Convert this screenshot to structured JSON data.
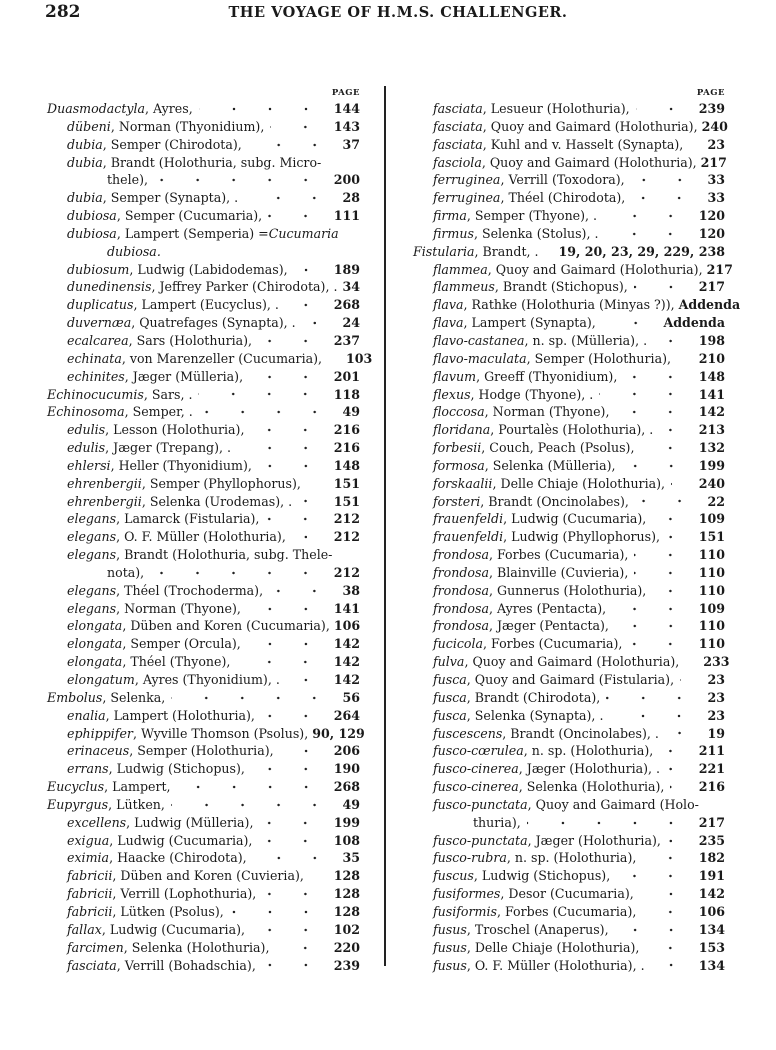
{
  "header": {
    "page_number": "282",
    "running_title": "THE VOYAGE OF H.M.S. CHALLENGER."
  },
  "columns": [
    {
      "page_label": "PAGE",
      "lines": [
        {
          "n": "Duasmodactyla",
          "t": ", Ayres,",
          "p": "144",
          "i": 0,
          "d": true
        },
        {
          "n": "dübeni",
          "t": ", Norman (Thyonidium),",
          "p": "143",
          "i": 1,
          "d": true
        },
        {
          "n": "dubia",
          "t": ", Semper (Chirodota),",
          "p": "37",
          "i": 1,
          "d": true
        },
        {
          "n": "dubia",
          "t": ", Brandt (Holothuria, subg. Micro-",
          "p": "",
          "i": 1,
          "d": false
        },
        {
          "n": "",
          "t": "thele),",
          "p": "200",
          "i": 2,
          "d": true
        },
        {
          "n": "dubia",
          "t": ", Semper (Synapta), .",
          "p": "28",
          "i": 1,
          "d": true
        },
        {
          "n": "dubiosa",
          "t": ", Semper (Cucumaria),",
          "p": "111",
          "i": 1,
          "d": true
        },
        {
          "n": "dubiosa",
          "t": ", Lampert (Semperia) = ",
          "n2": "Cucumaria",
          "p": "",
          "i": 1,
          "d": false
        },
        {
          "n": "dubiosa.",
          "t": "",
          "p": "",
          "i": 2,
          "d": false
        },
        {
          "n": "dubiosum",
          "t": ", Ludwig (Labidodemas),",
          "p": "189",
          "i": 1,
          "d": true
        },
        {
          "n": "dunedinensis",
          "t": ", Jeffrey Parker (Chirodota), .",
          "p": "34",
          "i": 1,
          "d": false
        },
        {
          "n": "duplicatus",
          "t": ", Lampert (Eucyclus), .",
          "p": "268",
          "i": 1,
          "d": true
        },
        {
          "n": "duvernæa",
          "t": ", Quatrefages (Synapta), .",
          "p": "24",
          "i": 1,
          "d": true
        },
        {
          "n": "ecalcarea",
          "t": ", Sars (Holothuria),",
          "p": "237",
          "i": 1,
          "d": true
        },
        {
          "n": "echinata",
          "t": ", von Marenzeller (Cucumaria),",
          "p": "103",
          "i": 1,
          "d": true
        },
        {
          "n": "echinites",
          "t": ", Jæger (Mülleria),",
          "p": "201",
          "i": 1,
          "d": true
        },
        {
          "n": "Echinocucumis",
          "t": ", Sars, .",
          "p": "118",
          "i": 0,
          "d": true
        },
        {
          "n": "Echinosoma",
          "t": ", Semper, .",
          "p": "49",
          "i": 0,
          "d": true
        },
        {
          "n": "edulis",
          "t": ", Lesson (Holothuria),",
          "p": "216",
          "i": 1,
          "d": true
        },
        {
          "n": "edulis",
          "t": ", Jæger (Trepang), .",
          "p": "216",
          "i": 1,
          "d": true
        },
        {
          "n": "ehlersi",
          "t": ", Heller (Thyonidium),",
          "p": "148",
          "i": 1,
          "d": true
        },
        {
          "n": "ehrenbergii",
          "t": ", Semper (Phyllophorus),",
          "p": "151",
          "i": 1,
          "d": true
        },
        {
          "n": "ehrenbergii",
          "t": ", Selenka (Urodemas), .",
          "p": "151",
          "i": 1,
          "d": true
        },
        {
          "n": "elegans",
          "t": ", Lamarck (Fistularia),",
          "p": "212",
          "i": 1,
          "d": true
        },
        {
          "n": "elegans",
          "t": ", O. F. Müller (Holothuria),",
          "p": "212",
          "i": 1,
          "d": true
        },
        {
          "n": "elegans",
          "t": ", Brandt (Holothuria, subg. Thele-",
          "p": "",
          "i": 1,
          "d": false
        },
        {
          "n": "",
          "t": "nota),",
          "p": "212",
          "i": 2,
          "d": true
        },
        {
          "n": "elegans",
          "t": ", Théel (Trochoderma),",
          "p": "38",
          "i": 1,
          "d": true
        },
        {
          "n": "elegans",
          "t": ", Norman (Thyone),",
          "p": "141",
          "i": 1,
          "d": true
        },
        {
          "n": "elongata",
          "t": ", Düben and Koren (Cucumaria),",
          "p": "106",
          "i": 1,
          "d": false
        },
        {
          "n": "elongata",
          "t": ", Semper (Orcula),",
          "p": "142",
          "i": 1,
          "d": true
        },
        {
          "n": "elongata",
          "t": ", Théel (Thyone),",
          "p": "142",
          "i": 1,
          "d": true
        },
        {
          "n": "elongatum",
          "t": ", Ayres (Thyonidium), .",
          "p": "142",
          "i": 1,
          "d": true
        },
        {
          "n": "Embolus",
          "t": ", Selenka,",
          "p": "56",
          "i": 0,
          "d": true
        },
        {
          "n": "enalia",
          "t": ", Lampert (Holothuria),",
          "p": "264",
          "i": 1,
          "d": true
        },
        {
          "n": "ephippifer",
          "t": ", Wyville Thomson (Psolus),",
          "p": "90, 129",
          "i": 1,
          "d": false
        },
        {
          "n": "erinaceus",
          "t": ", Semper (Holothuria),",
          "p": "206",
          "i": 1,
          "d": true
        },
        {
          "n": "errans",
          "t": ", Ludwig (Stichopus),",
          "p": "190",
          "i": 1,
          "d": true
        },
        {
          "n": "Eucyclus",
          "t": ", Lampert,",
          "p": "268",
          "i": 0,
          "d": true
        },
        {
          "n": "Eupyrgus",
          "t": ", Lütken,",
          "p": "49",
          "i": 0,
          "d": true
        },
        {
          "n": "excellens",
          "t": ", Ludwig (Mülleria),",
          "p": "199",
          "i": 1,
          "d": true
        },
        {
          "n": "exigua",
          "t": ", Ludwig (Cucumaria),",
          "p": "108",
          "i": 1,
          "d": true
        },
        {
          "n": "eximia",
          "t": ", Haacke (Chirodota),",
          "p": "35",
          "i": 1,
          "d": true
        },
        {
          "n": "fabricii",
          "t": ", Düben and Koren (Cuvieria),",
          "p": "128",
          "i": 1,
          "d": true
        },
        {
          "n": "fabricii",
          "t": ", Verrill (Lophothuria),",
          "p": "128",
          "i": 1,
          "d": true
        },
        {
          "n": "fabricii",
          "t": ", Lütken (Psolus),",
          "p": "128",
          "i": 1,
          "d": true
        },
        {
          "n": "fallax",
          "t": ", Ludwig (Cucumaria),",
          "p": "102",
          "i": 1,
          "d": true
        },
        {
          "n": "farcimen",
          "t": ", Selenka (Holothuria),",
          "p": "220",
          "i": 1,
          "d": true
        },
        {
          "n": "fasciata",
          "t": ", Verrill (Bohadschia),",
          "p": "239",
          "i": 1,
          "d": true
        }
      ]
    },
    {
      "page_label": "PAGE",
      "lines": [
        {
          "n": "fasciata",
          "t": ", Lesueur (Holothuria),",
          "p": "239",
          "i": 1,
          "d": true
        },
        {
          "n": "fasciata",
          "t": ", Quoy and Gaimard (Holothuria),",
          "p": "240",
          "i": 1,
          "d": false
        },
        {
          "n": "fasciata",
          "t": ", Kuhl and v. Hasselt (Synapta),",
          "p": "23",
          "i": 1,
          "d": false
        },
        {
          "n": "fasciola",
          "t": ", Quoy and Gaimard (Holothuria),",
          "p": "217",
          "i": 1,
          "d": false
        },
        {
          "n": "ferruginea",
          "t": ", Verrill (Toxodora),",
          "p": "33",
          "i": 1,
          "d": true
        },
        {
          "n": "ferruginea",
          "t": ", Théel (Chirodota),",
          "p": "33",
          "i": 1,
          "d": true
        },
        {
          "n": "firma",
          "t": ", Semper (Thyone), .",
          "p": "120",
          "i": 1,
          "d": true
        },
        {
          "n": "firmus",
          "t": ", Selenka (Stolus), .",
          "p": "120",
          "i": 1,
          "d": true
        },
        {
          "n": "Fistularia",
          "t": ", Brandt,   .",
          "p": "19, 20, 23, 29, 229, 238",
          "i": 0,
          "d": false
        },
        {
          "n": "flammea",
          "t": ", Quoy and Gaimard (Holothuria),",
          "p": "217",
          "i": 1,
          "d": false
        },
        {
          "n": "flammeus",
          "t": ", Brandt (Stichopus),",
          "p": "217",
          "i": 1,
          "d": true
        },
        {
          "n": "flava",
          "t": ", Rathke (Holothuria (Minyas ?)),",
          "p": "Addenda",
          "i": 1,
          "d": false
        },
        {
          "n": "flava",
          "t": ", Lampert (Synapta),",
          "p": "Addenda",
          "i": 1,
          "d": true
        },
        {
          "n": "flavo-castanea",
          "t": ", n. sp. (Mülleria), .",
          "p": "198",
          "i": 1,
          "d": true
        },
        {
          "n": "flavo-maculata",
          "t": ", Semper (Holothuria),",
          "p": "210",
          "i": 1,
          "d": true
        },
        {
          "n": "flavum",
          "t": ", Greeff (Thyonidium),",
          "p": "148",
          "i": 1,
          "d": true
        },
        {
          "n": "flexus",
          "t": ", Hodge (Thyone), .",
          "p": "141",
          "i": 1,
          "d": true
        },
        {
          "n": "floccosa",
          "t": ", Norman (Thyone),",
          "p": "142",
          "i": 1,
          "d": true
        },
        {
          "n": "floridana",
          "t": ", Pourtalès (Holothuria), .",
          "p": "213",
          "i": 1,
          "d": true
        },
        {
          "n": "forbesii",
          "t": ", Couch, Peach (Psolus),",
          "p": "132",
          "i": 1,
          "d": true
        },
        {
          "n": "formosa",
          "t": ", Selenka (Mülleria),",
          "p": "199",
          "i": 1,
          "d": true
        },
        {
          "n": "forskaalii",
          "t": ", Delle Chiaje (Holothuria),",
          "p": "240",
          "i": 1,
          "d": true
        },
        {
          "n": "forsteri",
          "t": ", Brandt (Oncinolabes),",
          "p": "22",
          "i": 1,
          "d": true
        },
        {
          "n": "frauenfeldi",
          "t": ", Ludwig (Cucumaria),",
          "p": "109",
          "i": 1,
          "d": true
        },
        {
          "n": "frauenfeldi",
          "t": ", Ludwig (Phyllophorus),",
          "p": "151",
          "i": 1,
          "d": true
        },
        {
          "n": "frondosa",
          "t": ", Forbes (Cucumaria),",
          "p": "110",
          "i": 1,
          "d": true
        },
        {
          "n": "frondosa",
          "t": ", Blainville (Cuvieria),",
          "p": "110",
          "i": 1,
          "d": true
        },
        {
          "n": "frondosa",
          "t": ", Gunnerus (Holothuria),",
          "p": "110",
          "i": 1,
          "d": true
        },
        {
          "n": "frondosa",
          "t": ", Ayres (Pentacta),",
          "p": "109",
          "i": 1,
          "d": true
        },
        {
          "n": "frondosa",
          "t": ", Jæger (Pentacta),",
          "p": "110",
          "i": 1,
          "d": true
        },
        {
          "n": "fucicola",
          "t": ", Forbes (Cucumaria),",
          "p": "110",
          "i": 1,
          "d": true
        },
        {
          "n": "fulva",
          "t": ", Quoy and Gaimard (Holothuria),",
          "p": "233",
          "i": 1,
          "d": true
        },
        {
          "n": "fusca",
          "t": ", Quoy and Gaimard (Fistularia),",
          "p": "23",
          "i": 1,
          "d": true
        },
        {
          "n": "fusca",
          "t": ", Brandt (Chirodota),",
          "p": "23",
          "i": 1,
          "d": true
        },
        {
          "n": "fusca",
          "t": ", Selenka (Synapta), .",
          "p": "23",
          "i": 1,
          "d": true
        },
        {
          "n": "fuscescens",
          "t": ", Brandt (Oncinolabes), .",
          "p": "19",
          "i": 1,
          "d": true
        },
        {
          "n": "fusco-cœrulea",
          "t": ", n. sp. (Holothuria),",
          "p": "211",
          "i": 1,
          "d": true
        },
        {
          "n": "fusco-cinerea",
          "t": ", Jæger (Holothuria), .",
          "p": "221",
          "i": 1,
          "d": true
        },
        {
          "n": "fusco-cinerea",
          "t": ", Selenka (Holothuria),",
          "p": "216",
          "i": 1,
          "d": true
        },
        {
          "n": "fusco-punctata",
          "t": ", Quoy and Gaimard (Holo-",
          "p": "",
          "i": 1,
          "d": false
        },
        {
          "n": "",
          "t": "thuria),",
          "p": "217",
          "i": 2,
          "d": true
        },
        {
          "n": "fusco-punctata",
          "t": ", Jæger (Holothuria),",
          "p": "235",
          "i": 1,
          "d": true
        },
        {
          "n": "fusco-rubra",
          "t": ", n. sp. (Holothuria),",
          "p": "182",
          "i": 1,
          "d": true
        },
        {
          "n": "fuscus",
          "t": ", Ludwig (Stichopus),",
          "p": "191",
          "i": 1,
          "d": true
        },
        {
          "n": "fusiformes",
          "t": ", Desor (Cucumaria),",
          "p": "142",
          "i": 1,
          "d": true
        },
        {
          "n": "fusiformis",
          "t": ", Forbes (Cucumaria),",
          "p": "106",
          "i": 1,
          "d": true
        },
        {
          "n": "fusus",
          "t": ", Troschel (Anaperus),",
          "p": "134",
          "i": 1,
          "d": true
        },
        {
          "n": "fusus",
          "t": ", Delle Chiaje (Holothuria),",
          "p": "153",
          "i": 1,
          "d": true
        },
        {
          "n": "fusus",
          "t": ", O. F. Müller (Holothuria), .",
          "p": "134",
          "i": 1,
          "d": true
        }
      ]
    }
  ]
}
